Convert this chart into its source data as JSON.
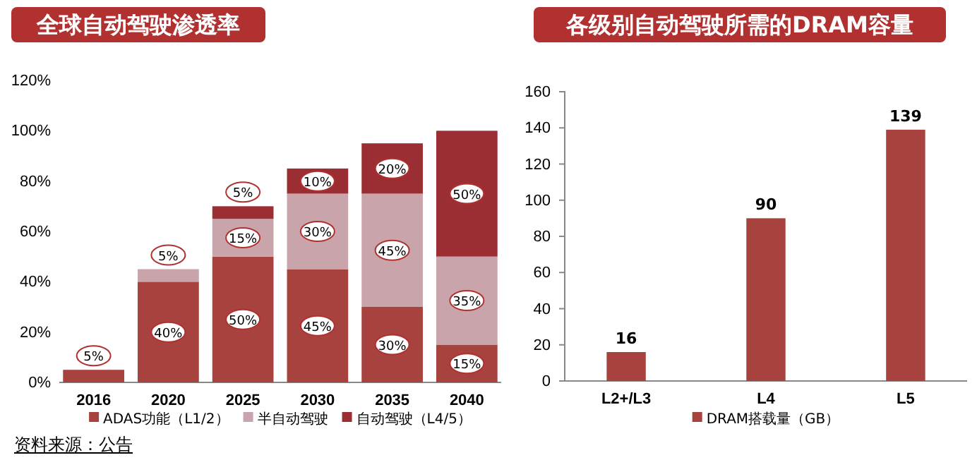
{
  "chart_data": [
    {
      "type": "bar",
      "title": "全球自动驾驶渗透率",
      "categories": [
        "2016",
        "2020",
        "2025",
        "2030",
        "2035",
        "2040"
      ],
      "stacked": true,
      "ylim": [
        0,
        120
      ],
      "yticks": [
        {
          "value": 0,
          "label": "0%"
        },
        {
          "value": 20,
          "label": "20%"
        },
        {
          "value": 40,
          "label": "40%"
        },
        {
          "value": 60,
          "label": "60%"
        },
        {
          "value": 80,
          "label": "80%"
        },
        {
          "value": 100,
          "label": "100%"
        },
        {
          "value": 120,
          "label": "120%"
        }
      ],
      "legend": "bottom",
      "annotations": [
        "资料来源：公告"
      ],
      "series": [
        {
          "name": "ADAS功能（L1/2）",
          "color": "#a8423f",
          "values": [
            5,
            40,
            50,
            45,
            30,
            15
          ],
          "value_labels": [
            "5%",
            "40%",
            "50%",
            "45%",
            "30%",
            "15%"
          ]
        },
        {
          "name": "半自动驾驶",
          "color": "#c9a4ab",
          "values": [
            null,
            5,
            15,
            30,
            45,
            35
          ],
          "value_labels": [
            null,
            "5%",
            "15%",
            "30%",
            "45%",
            "35%"
          ]
        },
        {
          "name": "自动驾驶（L4/5）",
          "color": "#9a2e33",
          "values": [
            null,
            null,
            5,
            10,
            20,
            50
          ],
          "value_labels": [
            null,
            null,
            "5%",
            "10%",
            "20%",
            "50%"
          ]
        }
      ]
    },
    {
      "type": "bar",
      "title": "各级别自动驾驶所需的DRAM容量",
      "categories": [
        "L2+/L3",
        "L4",
        "L5"
      ],
      "ylim": [
        0,
        160
      ],
      "yticks": [
        0,
        20,
        40,
        60,
        80,
        100,
        120,
        140,
        160
      ],
      "legend": "bottom",
      "data_labels": true,
      "series": [
        {
          "name": "DRAM搭载量（GB）",
          "color": "#a8423f",
          "values": [
            16,
            90,
            139
          ]
        }
      ]
    }
  ]
}
